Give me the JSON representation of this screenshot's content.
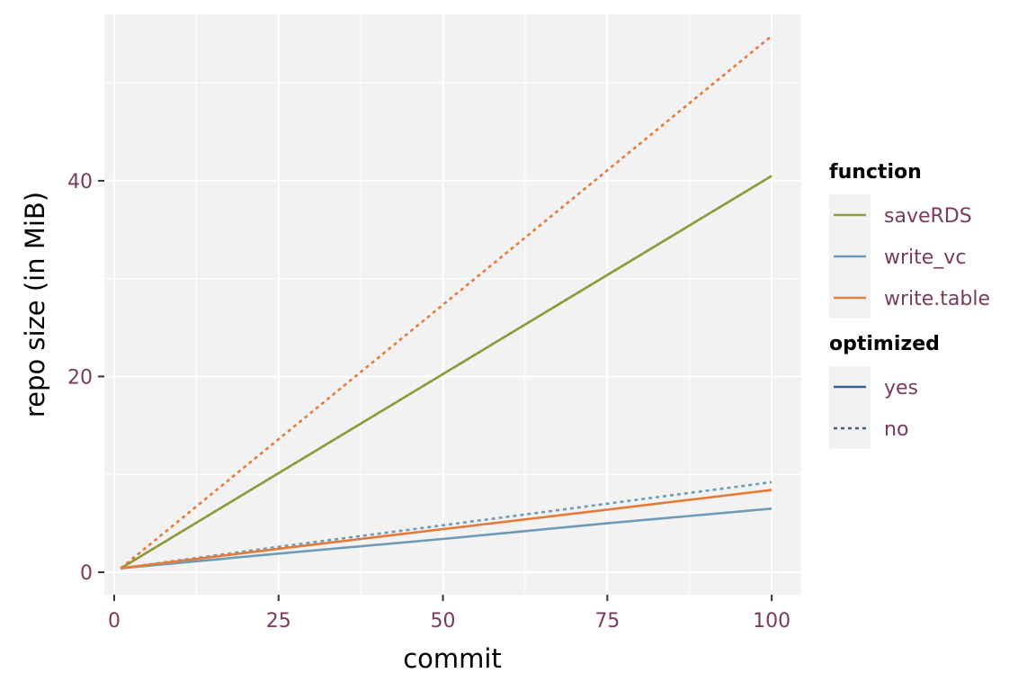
{
  "chart_data": {
    "type": "line",
    "xlabel": "commit",
    "ylabel": "repo size (in MiB)",
    "xlim": [
      -1.5,
      104.5
    ],
    "ylim": [
      -2.3,
      57.0
    ],
    "x_ticks": [
      0,
      25,
      50,
      75,
      100
    ],
    "x_tick_labels": [
      "0",
      "25",
      "50",
      "75",
      "100"
    ],
    "y_ticks": [
      0,
      20,
      40
    ],
    "y_tick_labels": [
      "0",
      "20",
      "40"
    ],
    "x_minor_ticks": [
      12.5,
      37.5,
      62.5,
      87.5
    ],
    "y_minor_ticks": [
      10,
      30,
      50
    ],
    "grid": true,
    "panel_background": "#f2f2f2",
    "grid_color": "#ffffff",
    "legend_position": "right",
    "legend": {
      "function": {
        "title": "function",
        "entries": [
          {
            "label": "saveRDS",
            "color": "#8f9a3a"
          },
          {
            "label": "write_vc",
            "color": "#6f9bb5"
          },
          {
            "label": "write.table",
            "color": "#e67a3a"
          }
        ]
      },
      "optimized": {
        "title": "optimized",
        "entries": [
          {
            "label": "yes",
            "linetype": "solid",
            "color": "#3a5f94"
          },
          {
            "label": "no",
            "linetype": "dotted",
            "color": "#3a5f94"
          }
        ]
      }
    },
    "series": [
      {
        "function": "saveRDS",
        "optimized": "yes",
        "color": "#8f9a3a",
        "linetype": "solid",
        "x": [
          1,
          100
        ],
        "y": [
          0.4,
          40.5
        ]
      },
      {
        "function": "saveRDS",
        "optimized": "no",
        "color": "#8f9a3a",
        "linetype": "dotted",
        "x": [
          1,
          100
        ],
        "y": [
          0.4,
          40.5
        ]
      },
      {
        "function": "write_vc",
        "optimized": "yes",
        "color": "#6f9bb5",
        "linetype": "solid",
        "x": [
          1,
          25,
          50,
          75,
          100
        ],
        "y": [
          0.4,
          1.9,
          3.4,
          5.0,
          6.5
        ]
      },
      {
        "function": "write_vc",
        "optimized": "no",
        "color": "#6f9bb5",
        "linetype": "dotted",
        "x": [
          1,
          25,
          50,
          75,
          100
        ],
        "y": [
          0.4,
          2.6,
          4.8,
          7.0,
          9.2
        ]
      },
      {
        "function": "write.table",
        "optimized": "yes",
        "color": "#e67a3a",
        "linetype": "solid",
        "x": [
          1,
          25,
          50,
          75,
          100
        ],
        "y": [
          0.4,
          2.4,
          4.4,
          6.4,
          8.4
        ]
      },
      {
        "function": "write.table",
        "optimized": "no",
        "color": "#e67a3a",
        "linetype": "dotted",
        "x": [
          1,
          100
        ],
        "y": [
          0.4,
          54.8
        ]
      }
    ]
  }
}
